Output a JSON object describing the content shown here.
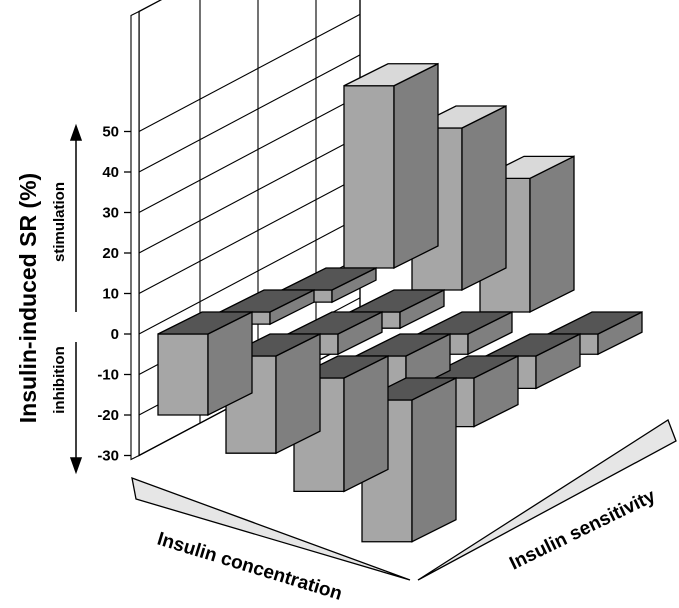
{
  "chart_data": {
    "type": "bar",
    "subtype": "3d-grid",
    "ylabel": "Insulin-induced SR (%)",
    "ylim": [
      -30,
      50
    ],
    "yticks": [
      "50",
      "40",
      "30",
      "20",
      "10",
      "0",
      "-10",
      "-20",
      "-30"
    ],
    "direction_labels": {
      "positive": "stimulation",
      "negative": "inhibition"
    },
    "x_axis_label": "Insulin concentration",
    "z_axis_label": "Insulin sensitivity",
    "grid": true,
    "rows": [
      {
        "values": [
          -20,
          -24,
          -28,
          -35
        ]
      },
      {
        "values": [
          -3,
          -5,
          -9,
          -12
        ]
      },
      {
        "values": [
          -3,
          -4,
          -5,
          -8
        ]
      },
      {
        "values": [
          45,
          40,
          33,
          -5
        ]
      }
    ],
    "colors": {
      "front_face": "#a6a6a6",
      "side_face": "#7f7f7f",
      "top_negative": "#555555",
      "top_positive": "#d9d9d9",
      "edge": "#000000"
    }
  }
}
